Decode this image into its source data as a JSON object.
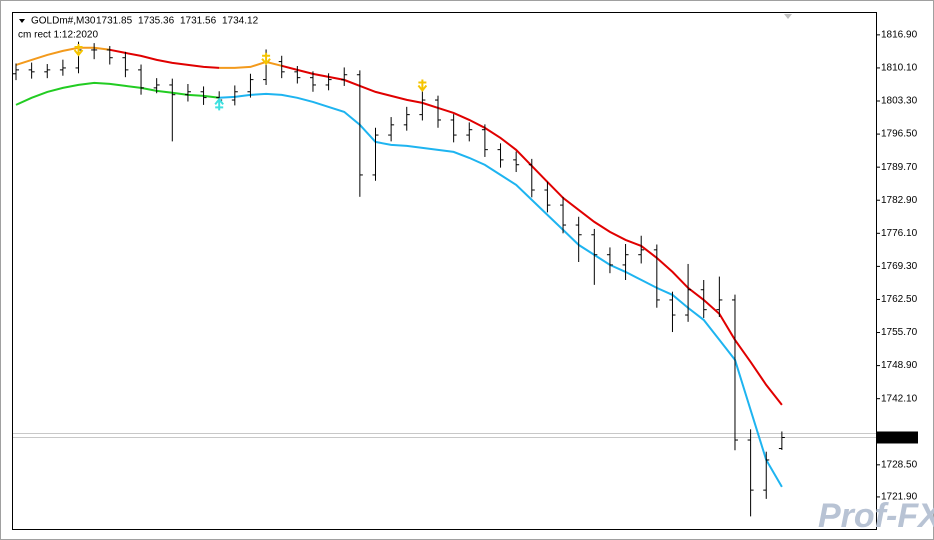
{
  "chart_data": {
    "type": "ohlc",
    "symbol": "GOLDm#,M30",
    "ohlc_header": [
      1731.85,
      1735.36,
      1731.56,
      1734.12
    ],
    "subtitle": "cm rect 1:12:2020",
    "watermark": "Prof-FX",
    "bar_color": "#000000",
    "ylim": [
      1715.1,
      1821.6
    ],
    "yticks": [
      {
        "value": 1816.9,
        "label": "1816.90"
      },
      {
        "value": 1810.1,
        "label": "1810.10"
      },
      {
        "value": 1803.3,
        "label": "1803.30"
      },
      {
        "value": 1796.5,
        "label": "1796.50"
      },
      {
        "value": 1789.7,
        "label": "1789.70"
      },
      {
        "value": 1782.9,
        "label": "1782.90"
      },
      {
        "value": 1776.1,
        "label": "1776.10"
      },
      {
        "value": 1769.3,
        "label": "1769.30"
      },
      {
        "value": 1762.5,
        "label": "1762.50"
      },
      {
        "value": 1755.7,
        "label": "1755.70"
      },
      {
        "value": 1748.9,
        "label": "1748.90"
      },
      {
        "value": 1742.1,
        "label": "1742.10"
      },
      {
        "value": 1728.5,
        "label": "1728.50"
      },
      {
        "value": 1721.9,
        "label": "1721.90"
      }
    ],
    "last_price": 1734.12,
    "open": [
      1808.9,
      1809.7,
      1809.3,
      1809.7,
      1810.1,
      1813.8,
      1813.8,
      1812.2,
      1809.7,
      1806.0,
      1806.6,
      1804.6,
      1805.2,
      1804.0,
      1803.5,
      1805.2,
      1807.7,
      1811.4,
      1809.3,
      1808.1,
      1806.6,
      1807.7,
      1808.7,
      1788.1,
      1796.3,
      1798.4,
      1800.5,
      1803.5,
      1799.4,
      1796.3,
      1797.4,
      1793.3,
      1791.2,
      1790.2,
      1785.0,
      1781.9,
      1777.8,
      1775.8,
      1771.7,
      1769.6,
      1771.7,
      1772.7,
      1762.4,
      1759.3,
      1764.5,
      1760.4,
      1762.4,
      1733.6,
      1723.3,
      1731.85
    ],
    "high": [
      1811.0,
      1811.2,
      1810.9,
      1811.8,
      1815.5,
      1815.2,
      1814.6,
      1813.4,
      1810.8,
      1808.0,
      1807.9,
      1806.8,
      1806.3,
      1805.3,
      1806.5,
      1808.9,
      1813.9,
      1812.6,
      1810.5,
      1809.4,
      1809.0,
      1810.2,
      1809.6,
      1797.8,
      1800.0,
      1802.1,
      1805.6,
      1804.4,
      1800.6,
      1798.9,
      1798.5,
      1794.6,
      1792.9,
      1791.4,
      1786.7,
      1783.6,
      1779.5,
      1777.0,
      1773.2,
      1773.9,
      1775.6,
      1773.8,
      1764.1,
      1769.8,
      1766.5,
      1767.2,
      1763.5,
      1735.8,
      1731.2,
      1735.36
    ],
    "low": [
      1807.6,
      1807.9,
      1808.0,
      1808.5,
      1809.0,
      1811.9,
      1810.8,
      1808.2,
      1804.6,
      1804.9,
      1795.0,
      1803.2,
      1802.5,
      1801.9,
      1802.4,
      1804.0,
      1806.6,
      1808.0,
      1806.9,
      1805.2,
      1805.5,
      1806.4,
      1783.6,
      1786.9,
      1795.0,
      1797.2,
      1799.3,
      1797.8,
      1794.8,
      1795.0,
      1791.8,
      1789.6,
      1788.7,
      1783.5,
      1780.4,
      1776.1,
      1770.2,
      1765.5,
      1767.9,
      1766.5,
      1769.9,
      1760.8,
      1755.8,
      1757.9,
      1758.7,
      1758.9,
      1731.5,
      1717.9,
      1721.5,
      1731.56
    ],
    "close": [
      1809.7,
      1809.3,
      1809.7,
      1810.1,
      1813.8,
      1813.8,
      1812.2,
      1809.7,
      1806.0,
      1806.6,
      1804.6,
      1805.2,
      1804.0,
      1803.5,
      1805.2,
      1807.7,
      1811.4,
      1809.3,
      1808.1,
      1806.6,
      1807.7,
      1808.7,
      1788.1,
      1796.3,
      1798.4,
      1800.5,
      1803.5,
      1799.4,
      1796.3,
      1797.4,
      1793.3,
      1791.2,
      1790.2,
      1785.0,
      1781.9,
      1777.8,
      1775.8,
      1771.7,
      1769.6,
      1771.7,
      1772.7,
      1762.4,
      1759.3,
      1764.5,
      1760.4,
      1762.4,
      1733.6,
      1723.3,
      1729.5,
      1734.12
    ],
    "series": [
      {
        "color": "#f39a1c",
        "values": [
          1810.73,
          1811.76,
          1812.79,
          1813.61,
          1814.23,
          1814.23,
          1813.82,
          null,
          null,
          null,
          null,
          null,
          null,
          1810.11,
          1810.11,
          1810.32,
          1811.35,
          1810.53,
          null,
          null,
          null,
          null,
          null,
          null,
          null,
          null,
          null,
          null,
          null,
          null,
          null,
          null,
          null,
          null,
          null,
          null,
          null,
          null,
          null,
          null,
          null,
          null,
          null,
          null,
          null,
          null,
          null,
          null,
          null,
          null
        ]
      },
      {
        "color": "#e00000",
        "values": [
          null,
          null,
          null,
          null,
          null,
          null,
          1813.82,
          1813.2,
          1812.58,
          1811.76,
          1811.14,
          1810.73,
          1810.32,
          1810.11,
          null,
          null,
          null,
          1810.53,
          1809.7,
          1808.88,
          1808.26,
          1807.65,
          1806.41,
          1805.18,
          1804.36,
          1803.53,
          1802.92,
          1801.89,
          1800.86,
          1799.42,
          1797.78,
          1795.72,
          1793.25,
          1789.96,
          1786.67,
          1783.38,
          1780.91,
          1778.45,
          1776.39,
          1774.75,
          1773.51,
          1771.05,
          1768.17,
          1764.87,
          1762.41,
          1759.53,
          1754.18,
          1749.66,
          1744.93,
          1740.82
        ]
      },
      {
        "color": "#22cc22",
        "values": [
          1802.51,
          1803.95,
          1805.18,
          1806.0,
          1806.62,
          1807.03,
          1806.82,
          1806.41,
          1806.0,
          1805.38,
          1804.98,
          1804.56,
          1804.36,
          1803.95,
          null,
          null,
          null,
          null,
          null,
          null,
          null,
          null,
          null,
          null,
          null,
          null,
          null,
          null,
          null,
          null,
          null,
          null,
          null,
          null,
          null,
          null,
          null,
          null,
          null,
          null,
          null,
          null,
          null,
          null,
          null,
          null,
          null,
          null,
          null,
          null
        ]
      },
      {
        "color": "#1eb4f0",
        "values": [
          null,
          null,
          null,
          null,
          null,
          null,
          null,
          null,
          null,
          null,
          null,
          null,
          null,
          1803.95,
          1804.15,
          1804.56,
          1804.77,
          1804.56,
          1803.95,
          1803.12,
          1802.09,
          1801.07,
          1798.39,
          1794.9,
          1794.28,
          1794.07,
          1793.66,
          1793.25,
          1792.84,
          1791.61,
          1790.17,
          1788.1,
          1786.05,
          1782.96,
          1779.88,
          1776.8,
          1773.71,
          1771.66,
          1769.6,
          1768.17,
          1766.52,
          1764.87,
          1763.44,
          1760.76,
          1758.29,
          1754.18,
          1750.07,
          1739.79,
          1729.51,
          1723.96
        ]
      }
    ],
    "arrows": [
      {
        "index": 4,
        "value": 1813.8,
        "color": "#f5c400",
        "direction": "down"
      },
      {
        "index": 16,
        "value": 1812.0,
        "color": "#f5c400",
        "direction": "down"
      },
      {
        "index": 26,
        "value": 1806.5,
        "color": "#f5c400",
        "direction": "down"
      },
      {
        "index": 13,
        "value": 1802.6,
        "color": "#3ee0e0",
        "direction": "up"
      }
    ]
  }
}
